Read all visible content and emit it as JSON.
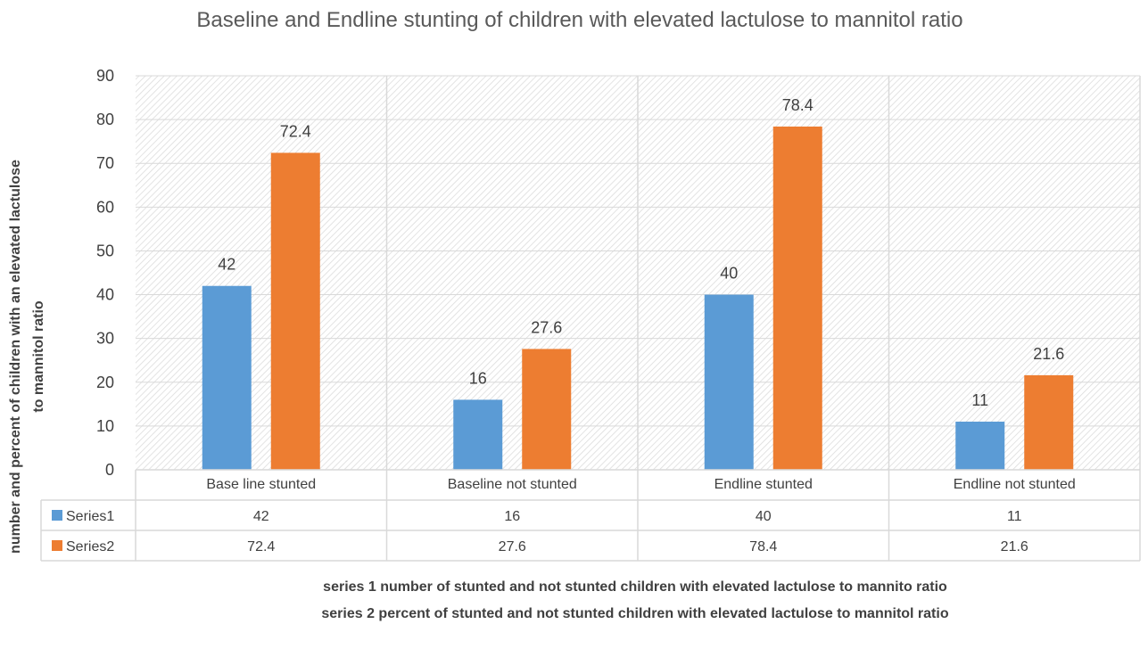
{
  "chart_data": {
    "type": "bar",
    "title": "Baseline and Endline stunting of children with elevated lactulose to mannitol ratio",
    "ylabel_line1": "number and percent of children with an elevated lactulose",
    "ylabel_line2": "to mannitol ratio",
    "xlabel": "",
    "ylim": [
      0,
      90
    ],
    "yticks": [
      "0",
      "10",
      "20",
      "30",
      "40",
      "50",
      "60",
      "70",
      "80",
      "90"
    ],
    "categories": [
      "Base line stunted",
      "Baseline not stunted",
      "Endline stunted",
      "Endline not stunted"
    ],
    "series": [
      {
        "name": "Series1",
        "color": "#5b9bd5",
        "values": [
          42,
          16,
          40,
          11
        ],
        "labels": [
          "42",
          "16",
          "40",
          "11"
        ]
      },
      {
        "name": "Series2",
        "color": "#ed7d31",
        "values": [
          72.4,
          27.6,
          78.4,
          21.6
        ],
        "labels": [
          "72.4",
          "27.6",
          "78.4",
          "21.6"
        ]
      }
    ],
    "grid": true,
    "data_table": true,
    "notes": [
      "series 1 number of stunted and not stunted children with elevated lactulose to mannito ratio",
      "series 2 percent of stunted and not stunted children with elevated lactulose to mannitol ratio"
    ]
  }
}
